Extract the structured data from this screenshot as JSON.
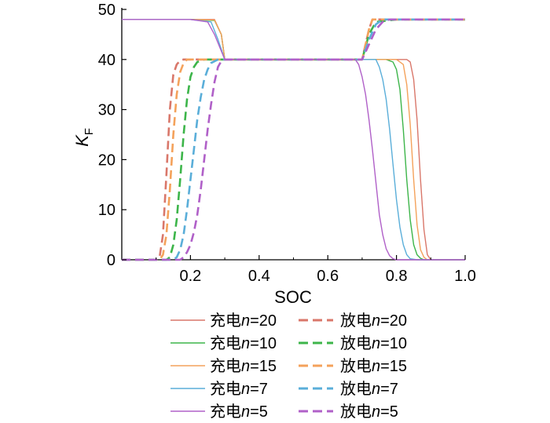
{
  "chart_data": {
    "type": "line",
    "xlabel": "SOC",
    "ylabel": "K",
    "ylabel_sub": "F",
    "xlim": [
      0,
      1.0
    ],
    "ylim": [
      0,
      50
    ],
    "xticks": [
      "0.2",
      "0.4",
      "0.6",
      "0.8",
      "1.0"
    ],
    "yticks": [
      "0",
      "10",
      "20",
      "30",
      "40",
      "50"
    ],
    "grid": false,
    "legend_position": "bottom",
    "series": [
      {
        "name": "充电n=20",
        "name_prefix": "充电",
        "name_var": "n",
        "name_suffix": "=20",
        "style": "solid",
        "color": "#d9776a",
        "x": [
          0.0,
          0.2,
          0.27,
          0.29,
          0.3,
          0.5,
          0.7,
          0.81,
          0.83,
          0.84,
          0.85,
          0.86,
          0.87,
          0.88,
          0.89,
          0.9,
          1.0
        ],
        "y": [
          48,
          48,
          48,
          45,
          40,
          40,
          40,
          40,
          40,
          39.5,
          36,
          28,
          16,
          6,
          1,
          0,
          0
        ]
      },
      {
        "name": "放电n=20",
        "name_prefix": "放电",
        "name_var": "n",
        "name_suffix": "=20",
        "style": "dashed",
        "color": "#d9776a",
        "x": [
          0.0,
          0.1,
          0.11,
          0.12,
          0.13,
          0.14,
          0.15,
          0.16,
          0.17,
          0.18,
          0.2,
          0.3,
          0.5,
          0.7,
          0.72,
          0.73,
          0.8,
          1.0
        ],
        "y": [
          0,
          0,
          0.5,
          5,
          17,
          30,
          37,
          39,
          39.8,
          40,
          40,
          40,
          40,
          40,
          46,
          48,
          48,
          48
        ]
      },
      {
        "name": "充电n=10",
        "name_prefix": "充电",
        "name_var": "n",
        "name_suffix": "=10",
        "style": "solid",
        "color": "#3db54a",
        "x": [
          0.0,
          0.2,
          0.27,
          0.29,
          0.3,
          0.5,
          0.7,
          0.77,
          0.79,
          0.8,
          0.81,
          0.82,
          0.83,
          0.84,
          0.85,
          0.86,
          0.87,
          0.88,
          1.0
        ],
        "y": [
          48,
          48,
          47.8,
          45,
          40,
          40,
          40,
          40,
          39.5,
          38,
          34,
          26,
          16,
          8,
          3,
          1,
          0.3,
          0,
          0
        ]
      },
      {
        "name": "放电n=10",
        "name_prefix": "放电",
        "name_var": "n",
        "name_suffix": "=10",
        "style": "dashed",
        "color": "#3db54a",
        "x": [
          0.0,
          0.13,
          0.14,
          0.15,
          0.16,
          0.17,
          0.18,
          0.19,
          0.2,
          0.21,
          0.22,
          0.24,
          0.3,
          0.5,
          0.7,
          0.72,
          0.74,
          0.8,
          1.0
        ],
        "y": [
          0,
          0,
          0.5,
          3,
          8,
          16,
          25,
          32,
          36.5,
          38.5,
          39.5,
          40,
          40,
          40,
          40,
          45,
          47.5,
          48,
          48
        ]
      },
      {
        "name": "充电n=15",
        "name_prefix": "充电",
        "name_var": "n",
        "name_suffix": "=15",
        "style": "solid",
        "color": "#f4a25b",
        "x": [
          0.0,
          0.2,
          0.27,
          0.29,
          0.3,
          0.5,
          0.7,
          0.8,
          0.82,
          0.83,
          0.84,
          0.85,
          0.86,
          0.87,
          0.88,
          0.89,
          1.0
        ],
        "y": [
          48,
          48,
          47.9,
          45,
          40,
          40,
          40,
          40,
          39,
          35,
          27,
          16,
          7,
          2,
          0.5,
          0,
          0
        ]
      },
      {
        "name": "放电n=15",
        "name_prefix": "放电",
        "name_var": "n",
        "name_suffix": "=15",
        "style": "dashed",
        "color": "#f4a25b",
        "x": [
          0.0,
          0.11,
          0.12,
          0.13,
          0.14,
          0.15,
          0.16,
          0.17,
          0.18,
          0.19,
          0.2,
          0.3,
          0.5,
          0.7,
          0.72,
          0.73,
          0.8,
          1.0
        ],
        "y": [
          0,
          0,
          1,
          5,
          14,
          25,
          33,
          37.5,
          39.3,
          40,
          40,
          40,
          40,
          40,
          46,
          48,
          48,
          48
        ]
      },
      {
        "name": "充电n=7",
        "name_prefix": "充电",
        "name_var": "n",
        "name_suffix": "=7",
        "style": "solid",
        "color": "#5aaed9",
        "x": [
          0.0,
          0.2,
          0.26,
          0.28,
          0.3,
          0.5,
          0.7,
          0.74,
          0.75,
          0.76,
          0.77,
          0.78,
          0.79,
          0.8,
          0.81,
          0.82,
          0.83,
          0.84,
          0.86,
          1.0
        ],
        "y": [
          48,
          48,
          47.5,
          44,
          40,
          40,
          40,
          40,
          38.5,
          36,
          32,
          26,
          19,
          12,
          6.5,
          3,
          1,
          0.2,
          0,
          0
        ]
      },
      {
        "name": "放电n=7",
        "name_prefix": "放电",
        "name_var": "n",
        "name_suffix": "=7",
        "style": "dashed",
        "color": "#5aaed9",
        "x": [
          0.0,
          0.15,
          0.16,
          0.17,
          0.18,
          0.19,
          0.2,
          0.21,
          0.22,
          0.23,
          0.24,
          0.25,
          0.26,
          0.28,
          0.3,
          0.5,
          0.7,
          0.72,
          0.74,
          0.76,
          0.8,
          1.0
        ],
        "y": [
          0,
          0,
          0.5,
          2,
          5,
          10,
          16,
          22,
          28,
          32.5,
          36,
          38,
          39.3,
          40,
          40,
          40,
          40,
          44,
          47,
          48,
          48,
          48
        ]
      },
      {
        "name": "充电n=5",
        "name_prefix": "充电",
        "name_var": "n",
        "name_suffix": "=5",
        "style": "solid",
        "color": "#b060c8",
        "x": [
          0.0,
          0.2,
          0.25,
          0.27,
          0.3,
          0.5,
          0.68,
          0.69,
          0.7,
          0.71,
          0.72,
          0.73,
          0.74,
          0.75,
          0.76,
          0.77,
          0.78,
          0.79,
          0.8,
          0.82,
          1.0
        ],
        "y": [
          48,
          48,
          47.5,
          45,
          40,
          40,
          40,
          39,
          36.5,
          33,
          28,
          22,
          15.5,
          9,
          5,
          2.2,
          0.8,
          0.2,
          0,
          0,
          0
        ]
      },
      {
        "name": "放电n=5",
        "name_prefix": "放电",
        "name_var": "n",
        "name_suffix": "=5",
        "style": "dashed",
        "color": "#b060c8",
        "x": [
          0.0,
          0.17,
          0.18,
          0.19,
          0.2,
          0.21,
          0.22,
          0.23,
          0.24,
          0.25,
          0.26,
          0.27,
          0.28,
          0.29,
          0.3,
          0.5,
          0.7,
          0.72,
          0.74,
          0.76,
          0.78,
          0.8,
          1.0
        ],
        "y": [
          0,
          0,
          0.5,
          1.5,
          3,
          5.5,
          9,
          14,
          20,
          26,
          31,
          35.5,
          38.5,
          39.7,
          40,
          40,
          40,
          43,
          46,
          47.5,
          48,
          48,
          48
        ]
      }
    ]
  }
}
